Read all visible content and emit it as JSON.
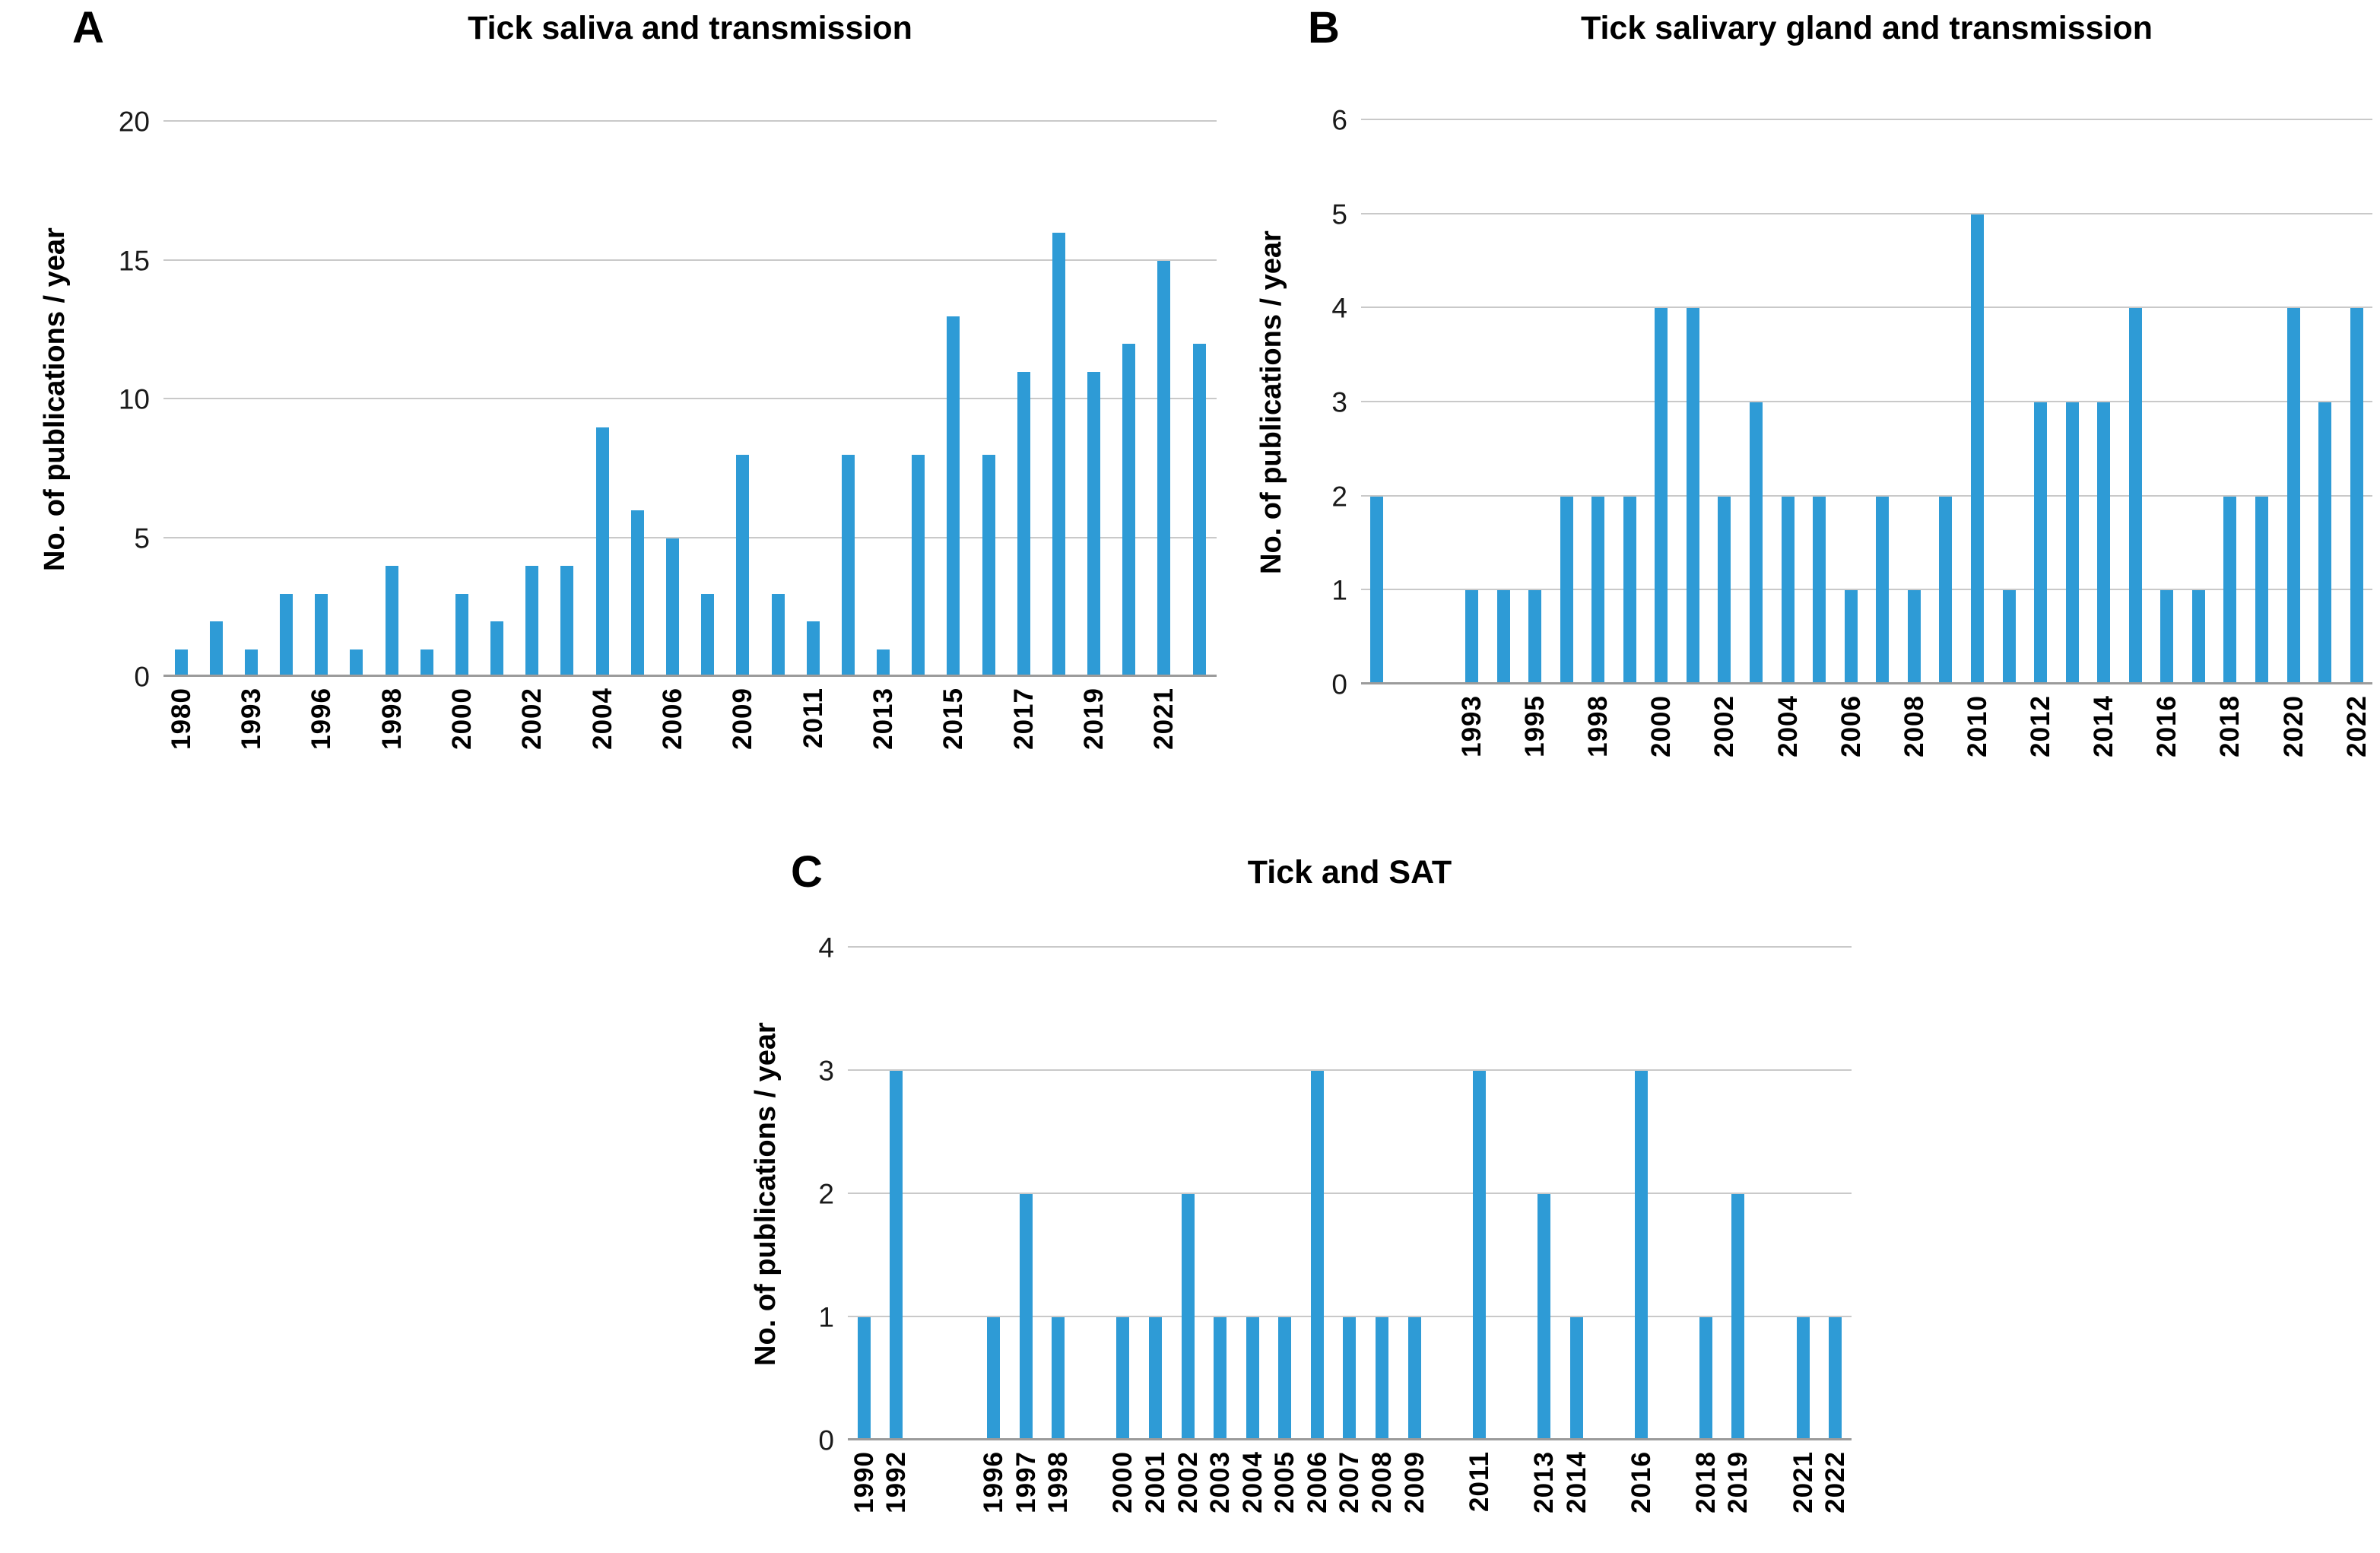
{
  "figure": {
    "colors": {
      "bar": "#2e9bd6",
      "gridline": "#c9c9c9",
      "axis_line": "#9b9b9b",
      "text": "#000000",
      "background": "#ffffff"
    }
  },
  "chart_data": [
    {
      "type": "bar",
      "panel": "A",
      "title": "Tick saliva and transmission",
      "xlabel": "",
      "ylabel": "No. of publications / year",
      "ylim": [
        0,
        20
      ],
      "yticks": [
        0,
        5,
        10,
        15,
        20
      ],
      "grid": true,
      "legend": false,
      "x_label_rotation_deg": 90,
      "bars": [
        {
          "x": "1980",
          "value": 1
        },
        {
          "x": "",
          "value": 2
        },
        {
          "x": "1993",
          "value": 1
        },
        {
          "x": "",
          "value": 3
        },
        {
          "x": "1996",
          "value": 3
        },
        {
          "x": "",
          "value": 1
        },
        {
          "x": "1998",
          "value": 4
        },
        {
          "x": "",
          "value": 1
        },
        {
          "x": "2000",
          "value": 3
        },
        {
          "x": "",
          "value": 2
        },
        {
          "x": "2002",
          "value": 4
        },
        {
          "x": "",
          "value": 4
        },
        {
          "x": "2004",
          "value": 9
        },
        {
          "x": "",
          "value": 6
        },
        {
          "x": "2006",
          "value": 5
        },
        {
          "x": "",
          "value": 3
        },
        {
          "x": "2009",
          "value": 8
        },
        {
          "x": "",
          "value": 3
        },
        {
          "x": "2011",
          "value": 2
        },
        {
          "x": "",
          "value": 8
        },
        {
          "x": "2013",
          "value": 1
        },
        {
          "x": "",
          "value": 8
        },
        {
          "x": "2015",
          "value": 13
        },
        {
          "x": "",
          "value": 8
        },
        {
          "x": "2017",
          "value": 11
        },
        {
          "x": "",
          "value": 16
        },
        {
          "x": "2019",
          "value": 11
        },
        {
          "x": "",
          "value": 12
        },
        {
          "x": "2021",
          "value": 15
        },
        {
          "x": "",
          "value": 12
        }
      ]
    },
    {
      "type": "bar",
      "panel": "B",
      "title": "Tick salivary gland and transmission",
      "xlabel": "",
      "ylabel": "No. of publications / year",
      "ylim": [
        0,
        6
      ],
      "yticks": [
        0,
        1,
        2,
        3,
        4,
        5,
        6
      ],
      "grid": true,
      "legend": false,
      "x_label_rotation_deg": 90,
      "bars": [
        {
          "x": "",
          "value": 2
        },
        {
          "x": "",
          "value": null
        },
        {
          "x": "",
          "value": null
        },
        {
          "x": "1993",
          "value": 1
        },
        {
          "x": "",
          "value": 1
        },
        {
          "x": "1995",
          "value": 1
        },
        {
          "x": "",
          "value": 2
        },
        {
          "x": "1998",
          "value": 2
        },
        {
          "x": "",
          "value": 2
        },
        {
          "x": "2000",
          "value": 4
        },
        {
          "x": "",
          "value": 4
        },
        {
          "x": "2002",
          "value": 2
        },
        {
          "x": "",
          "value": 3
        },
        {
          "x": "2004",
          "value": 2
        },
        {
          "x": "",
          "value": 2
        },
        {
          "x": "2006",
          "value": 1
        },
        {
          "x": "",
          "value": 2
        },
        {
          "x": "2008",
          "value": 1
        },
        {
          "x": "",
          "value": 2
        },
        {
          "x": "2010",
          "value": 5
        },
        {
          "x": "",
          "value": 1
        },
        {
          "x": "2012",
          "value": 3
        },
        {
          "x": "",
          "value": 3
        },
        {
          "x": "2014",
          "value": 3
        },
        {
          "x": "",
          "value": 4
        },
        {
          "x": "2016",
          "value": 1
        },
        {
          "x": "",
          "value": 1
        },
        {
          "x": "2018",
          "value": 2
        },
        {
          "x": "",
          "value": 2
        },
        {
          "x": "2020",
          "value": 4
        },
        {
          "x": "",
          "value": 3
        },
        {
          "x": "2022",
          "value": 4
        }
      ]
    },
    {
      "type": "bar",
      "panel": "C",
      "title": "Tick and SAT",
      "xlabel": "",
      "ylabel": "No. of publications / year",
      "ylim": [
        0,
        4
      ],
      "yticks": [
        0,
        1,
        2,
        3,
        4
      ],
      "grid": true,
      "legend": false,
      "x_label_rotation_deg": 90,
      "bars": [
        {
          "x": "1990",
          "value": 1
        },
        {
          "x": "1992",
          "value": 3
        },
        {
          "x": "",
          "value": null
        },
        {
          "x": "",
          "value": null
        },
        {
          "x": "1996",
          "value": 1
        },
        {
          "x": "1997",
          "value": 2
        },
        {
          "x": "1998",
          "value": 1
        },
        {
          "x": "",
          "value": null
        },
        {
          "x": "2000",
          "value": 1
        },
        {
          "x": "2001",
          "value": 1
        },
        {
          "x": "2002",
          "value": 2
        },
        {
          "x": "2003",
          "value": 1
        },
        {
          "x": "2004",
          "value": 1
        },
        {
          "x": "2005",
          "value": 1
        },
        {
          "x": "2006",
          "value": 3
        },
        {
          "x": "2007",
          "value": 1
        },
        {
          "x": "2008",
          "value": 1
        },
        {
          "x": "2009",
          "value": 1
        },
        {
          "x": "",
          "value": null
        },
        {
          "x": "2011",
          "value": 3
        },
        {
          "x": "",
          "value": null
        },
        {
          "x": "2013",
          "value": 2
        },
        {
          "x": "2014",
          "value": 1
        },
        {
          "x": "",
          "value": null
        },
        {
          "x": "2016",
          "value": 3
        },
        {
          "x": "",
          "value": null
        },
        {
          "x": "2018",
          "value": 1
        },
        {
          "x": "2019",
          "value": 2
        },
        {
          "x": "",
          "value": null
        },
        {
          "x": "2021",
          "value": 1
        },
        {
          "x": "2022",
          "value": 1
        }
      ]
    }
  ]
}
